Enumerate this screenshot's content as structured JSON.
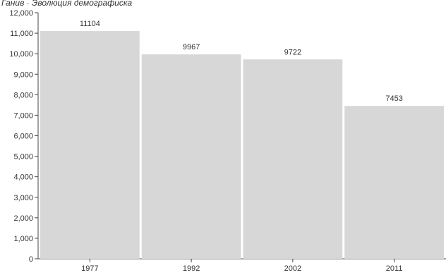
{
  "chart_data": {
    "type": "bar",
    "title": "Ганив · Эволюция демографиска",
    "xlabel": "",
    "ylabel": "",
    "categories": [
      "1977",
      "1992",
      "2002",
      "2011"
    ],
    "values": [
      11104,
      9967,
      9722,
      7453
    ],
    "data_labels": [
      "11104",
      "9967",
      "9722",
      "7453"
    ],
    "ylim": [
      0,
      12000
    ],
    "yticks": [
      0,
      1000,
      2000,
      3000,
      4000,
      5000,
      6000,
      7000,
      8000,
      9000,
      10000,
      11000,
      12000
    ],
    "ytick_labels": [
      "0",
      "1,000",
      "2,000",
      "3,000",
      "4,000",
      "5,000",
      "6,000",
      "7,000",
      "8,000",
      "9,000",
      "10,000",
      "11,000",
      "12,000"
    ],
    "grid": false,
    "legend": "none",
    "colors": {
      "bar": "#d7d7d7",
      "axis": "#444444",
      "text": "#333333"
    }
  }
}
